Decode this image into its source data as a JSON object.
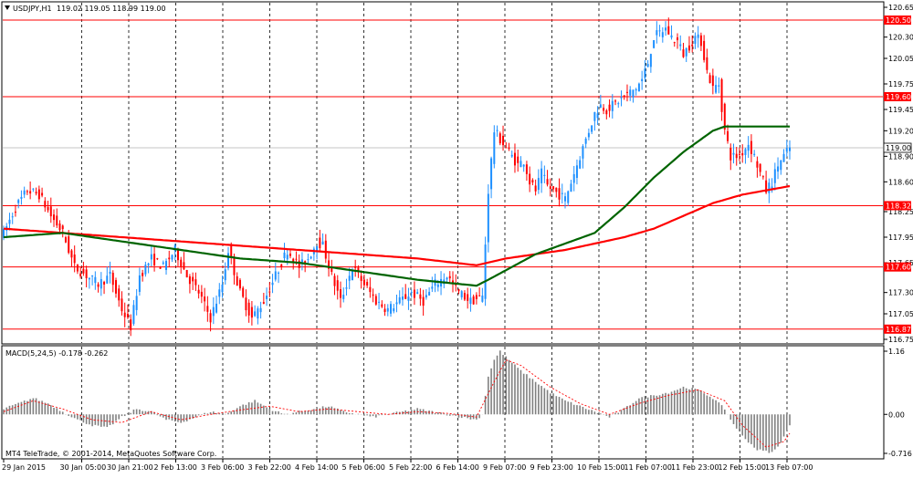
{
  "chart_data": [
    {
      "type": "candlestick",
      "symbol_header": "USDJPY,H1",
      "ohlc_header": "119.02 119.05 118.99 119.00",
      "ylim": [
        116.75,
        120.65
      ],
      "y_ticks": [
        "120.65",
        "120.30",
        "120.05",
        "119.75",
        "119.45",
        "119.20",
        "118.90",
        "118.60",
        "118.25",
        "117.95",
        "117.65",
        "117.30",
        "117.05",
        "116.75"
      ],
      "y_tick_values": [
        120.65,
        120.3,
        120.05,
        119.75,
        119.45,
        119.2,
        118.9,
        118.6,
        118.25,
        117.95,
        117.65,
        117.3,
        117.05,
        116.75
      ],
      "x_labels": [
        "29 Jan 2015",
        "30 Jan 05:00",
        "30 Jan 21:00",
        "2 Feb 13:00",
        "3 Feb 06:00",
        "3 Feb 22:00",
        "4 Feb 14:00",
        "5 Feb 06:00",
        "5 Feb 22:00",
        "6 Feb 14:00",
        "9 Feb 07:00",
        "9 Feb 23:00",
        "10 Feb 15:00",
        "11 Feb 07:00",
        "11 Feb 23:00",
        "12 Feb 15:00",
        "13 Feb 07:00"
      ],
      "levels": [
        {
          "value": 120.5,
          "label": "120.50",
          "color": "#ff0000"
        },
        {
          "value": 119.6,
          "label": "119.60",
          "color": "#ff0000"
        },
        {
          "value": 118.32,
          "label": "118.32",
          "color": "#ff0000"
        },
        {
          "value": 117.6,
          "label": "117.60",
          "color": "#ff0000"
        },
        {
          "value": 116.87,
          "label": "116.87",
          "color": "#ff0000"
        }
      ],
      "current_price": {
        "value": 119.0,
        "label": "119.00"
      },
      "price_path": [
        [
          0,
          118.0
        ],
        [
          4,
          118.3
        ],
        [
          8,
          118.5
        ],
        [
          12,
          118.45
        ],
        [
          16,
          118.2
        ],
        [
          20,
          118.0
        ],
        [
          24,
          117.6
        ],
        [
          28,
          117.5
        ],
        [
          32,
          117.4
        ],
        [
          36,
          117.5
        ],
        [
          40,
          117.1
        ],
        [
          43,
          116.9
        ],
        [
          46,
          117.5
        ],
        [
          50,
          117.7
        ],
        [
          54,
          117.6
        ],
        [
          58,
          117.8
        ],
        [
          62,
          117.5
        ],
        [
          66,
          117.3
        ],
        [
          70,
          117.0
        ],
        [
          74,
          117.4
        ],
        [
          76,
          117.8
        ],
        [
          80,
          117.3
        ],
        [
          84,
          117.0
        ],
        [
          88,
          117.2
        ],
        [
          92,
          117.5
        ],
        [
          96,
          117.8
        ],
        [
          100,
          117.6
        ],
        [
          103,
          117.7
        ],
        [
          106,
          117.9
        ],
        [
          108,
          117.85
        ],
        [
          111,
          117.5
        ],
        [
          114,
          117.2
        ],
        [
          118,
          117.6
        ],
        [
          122,
          117.4
        ],
        [
          126,
          117.2
        ],
        [
          130,
          117.1
        ],
        [
          134,
          117.2
        ],
        [
          138,
          117.3
        ],
        [
          142,
          117.2
        ],
        [
          146,
          117.4
        ],
        [
          150,
          117.5
        ],
        [
          154,
          117.3
        ],
        [
          158,
          117.2
        ],
        [
          162,
          117.25
        ],
        [
          164,
          118.5
        ],
        [
          166,
          119.2
        ],
        [
          168,
          119.1
        ],
        [
          170,
          119.0
        ],
        [
          172,
          118.9
        ],
        [
          174,
          118.8
        ],
        [
          176,
          118.85
        ],
        [
          178,
          118.6
        ],
        [
          180,
          118.5
        ],
        [
          182,
          118.7
        ],
        [
          184,
          118.55
        ],
        [
          186,
          118.5
        ],
        [
          188,
          118.45
        ],
        [
          190,
          118.4
        ],
        [
          192,
          118.6
        ],
        [
          194,
          118.8
        ],
        [
          196,
          119.0
        ],
        [
          198,
          119.2
        ],
        [
          200,
          119.4
        ],
        [
          202,
          119.5
        ],
        [
          204,
          119.45
        ],
        [
          206,
          119.5
        ],
        [
          208,
          119.55
        ],
        [
          210,
          119.6
        ],
        [
          212,
          119.65
        ],
        [
          214,
          119.7
        ],
        [
          216,
          119.8
        ],
        [
          218,
          120.0
        ],
        [
          220,
          120.3
        ],
        [
          222,
          120.35
        ],
        [
          224,
          120.4
        ],
        [
          226,
          120.3
        ],
        [
          228,
          120.25
        ],
        [
          230,
          120.1
        ],
        [
          232,
          120.2
        ],
        [
          234,
          120.3
        ],
        [
          236,
          120.25
        ],
        [
          238,
          119.9
        ],
        [
          240,
          119.7
        ],
        [
          242,
          119.75
        ],
        [
          244,
          119.2
        ],
        [
          246,
          118.9
        ],
        [
          248,
          118.9
        ],
        [
          250,
          118.95
        ],
        [
          252,
          119.05
        ],
        [
          254,
          118.9
        ],
        [
          256,
          118.7
        ],
        [
          258,
          118.5
        ],
        [
          260,
          118.6
        ],
        [
          262,
          118.8
        ],
        [
          264,
          118.9
        ],
        [
          266,
          119.0
        ]
      ],
      "ma_green": [
        [
          0,
          117.95
        ],
        [
          20,
          118.0
        ],
        [
          40,
          117.9
        ],
        [
          60,
          117.8
        ],
        [
          80,
          117.7
        ],
        [
          100,
          117.65
        ],
        [
          120,
          117.55
        ],
        [
          140,
          117.45
        ],
        [
          160,
          117.38
        ],
        [
          164,
          117.45
        ],
        [
          180,
          117.75
        ],
        [
          200,
          118.0
        ],
        [
          210,
          118.3
        ],
        [
          220,
          118.65
        ],
        [
          230,
          118.95
        ],
        [
          240,
          119.2
        ],
        [
          244,
          119.25
        ],
        [
          250,
          119.25
        ],
        [
          266,
          119.25
        ]
      ],
      "ma_red": [
        [
          0,
          118.05
        ],
        [
          20,
          118.0
        ],
        [
          40,
          117.95
        ],
        [
          60,
          117.9
        ],
        [
          80,
          117.85
        ],
        [
          100,
          117.8
        ],
        [
          120,
          117.75
        ],
        [
          140,
          117.7
        ],
        [
          160,
          117.62
        ],
        [
          170,
          117.7
        ],
        [
          190,
          117.8
        ],
        [
          210,
          117.95
        ],
        [
          220,
          118.05
        ],
        [
          230,
          118.2
        ],
        [
          240,
          118.35
        ],
        [
          250,
          118.45
        ],
        [
          266,
          118.55
        ]
      ]
    },
    {
      "type": "histogram",
      "indicator_header": "MACD(5,24,5) -0.178 -0.262",
      "ylim": [
        -0.716,
        1.16
      ],
      "y_ticks": [
        "1.16",
        "0.00",
        "-0.716"
      ],
      "y_tick_values": [
        1.16,
        0.0,
        -0.716
      ],
      "hist_path": [
        [
          0,
          0.1
        ],
        [
          5,
          0.2
        ],
        [
          10,
          0.3
        ],
        [
          15,
          0.2
        ],
        [
          20,
          0.05
        ],
        [
          25,
          -0.1
        ],
        [
          30,
          -0.2
        ],
        [
          35,
          -0.25
        ],
        [
          40,
          -0.05
        ],
        [
          45,
          0.1
        ],
        [
          50,
          0.05
        ],
        [
          55,
          -0.1
        ],
        [
          60,
          -0.15
        ],
        [
          65,
          -0.05
        ],
        [
          70,
          0.05
        ],
        [
          75,
          0.0
        ],
        [
          80,
          0.15
        ],
        [
          85,
          0.25
        ],
        [
          90,
          0.1
        ],
        [
          95,
          0.0
        ],
        [
          100,
          0.05
        ],
        [
          105,
          0.1
        ],
        [
          110,
          0.15
        ],
        [
          115,
          0.05
        ],
        [
          120,
          0.0
        ],
        [
          125,
          -0.05
        ],
        [
          130,
          0.0
        ],
        [
          135,
          0.05
        ],
        [
          140,
          0.1
        ],
        [
          145,
          0.05
        ],
        [
          150,
          0.0
        ],
        [
          155,
          -0.05
        ],
        [
          160,
          -0.1
        ],
        [
          162,
          0.0
        ],
        [
          164,
          0.7
        ],
        [
          166,
          1.0
        ],
        [
          168,
          1.16
        ],
        [
          170,
          1.05
        ],
        [
          175,
          0.8
        ],
        [
          180,
          0.6
        ],
        [
          185,
          0.4
        ],
        [
          190,
          0.25
        ],
        [
          195,
          0.15
        ],
        [
          200,
          0.05
        ],
        [
          205,
          -0.05
        ],
        [
          210,
          0.1
        ],
        [
          215,
          0.3
        ],
        [
          220,
          0.35
        ],
        [
          225,
          0.4
        ],
        [
          230,
          0.5
        ],
        [
          235,
          0.45
        ],
        [
          240,
          0.3
        ],
        [
          244,
          0.1
        ],
        [
          246,
          -0.1
        ],
        [
          250,
          -0.4
        ],
        [
          255,
          -0.65
        ],
        [
          260,
          -0.7
        ],
        [
          262,
          -0.6
        ],
        [
          264,
          -0.4
        ],
        [
          266,
          -0.2
        ]
      ],
      "signal_path": [
        [
          0,
          0.05
        ],
        [
          10,
          0.25
        ],
        [
          20,
          0.1
        ],
        [
          30,
          -0.1
        ],
        [
          40,
          -0.15
        ],
        [
          50,
          0.05
        ],
        [
          60,
          -0.1
        ],
        [
          70,
          0.0
        ],
        [
          80,
          0.08
        ],
        [
          90,
          0.15
        ],
        [
          100,
          0.05
        ],
        [
          110,
          0.1
        ],
        [
          120,
          0.05
        ],
        [
          130,
          0.0
        ],
        [
          140,
          0.05
        ],
        [
          150,
          0.02
        ],
        [
          160,
          -0.05
        ],
        [
          166,
          0.6
        ],
        [
          170,
          1.0
        ],
        [
          175,
          0.9
        ],
        [
          185,
          0.5
        ],
        [
          195,
          0.2
        ],
        [
          205,
          0.0
        ],
        [
          215,
          0.2
        ],
        [
          225,
          0.35
        ],
        [
          235,
          0.45
        ],
        [
          244,
          0.25
        ],
        [
          250,
          -0.2
        ],
        [
          258,
          -0.6
        ],
        [
          264,
          -0.5
        ],
        [
          266,
          -0.35
        ]
      ]
    }
  ],
  "footer": "MT4 TeleTrade, © 2001-2014, MetaQuotes Software Corp.",
  "colors": {
    "up": "#1e90ff",
    "down": "#ff0000",
    "ma_green": "#006400",
    "ma_red": "#ff0000",
    "level": "#ff0000",
    "grid": "#000000",
    "macd_hist": "#808080",
    "macd_signal": "#ff0000"
  }
}
